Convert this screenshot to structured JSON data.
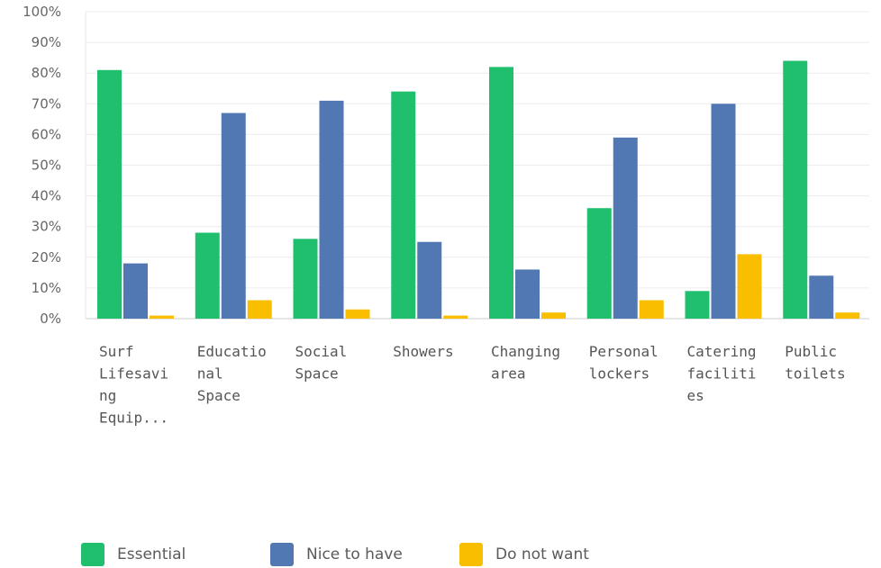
{
  "chart_data": {
    "type": "bar",
    "categories": [
      [
        "Surf",
        "Lifesavi",
        "ng",
        "Equip..."
      ],
      [
        "Educatio",
        "nal",
        "Space"
      ],
      [
        "Social",
        "Space"
      ],
      [
        "Showers"
      ],
      [
        "Changing",
        "area"
      ],
      [
        "Personal",
        "lockers"
      ],
      [
        "Catering",
        "faciliti",
        "es"
      ],
      [
        "Public",
        "toilets"
      ]
    ],
    "series": [
      {
        "name": "Essential",
        "color": "#1FBF6E",
        "values": [
          81,
          28,
          26,
          74,
          82,
          36,
          9,
          84
        ]
      },
      {
        "name": "Nice to have",
        "color": "#5278B3",
        "values": [
          18,
          67,
          71,
          25,
          16,
          59,
          70,
          14
        ]
      },
      {
        "name": "Do not want",
        "color": "#F9BE00",
        "values": [
          1,
          6,
          3,
          1,
          2,
          6,
          21,
          2
        ]
      }
    ],
    "ylim": [
      0,
      100
    ],
    "yticks": [
      "0%",
      "10%",
      "20%",
      "30%",
      "40%",
      "50%",
      "60%",
      "70%",
      "80%",
      "90%",
      "100%"
    ],
    "grid": true,
    "legend_position": "bottom-left"
  }
}
